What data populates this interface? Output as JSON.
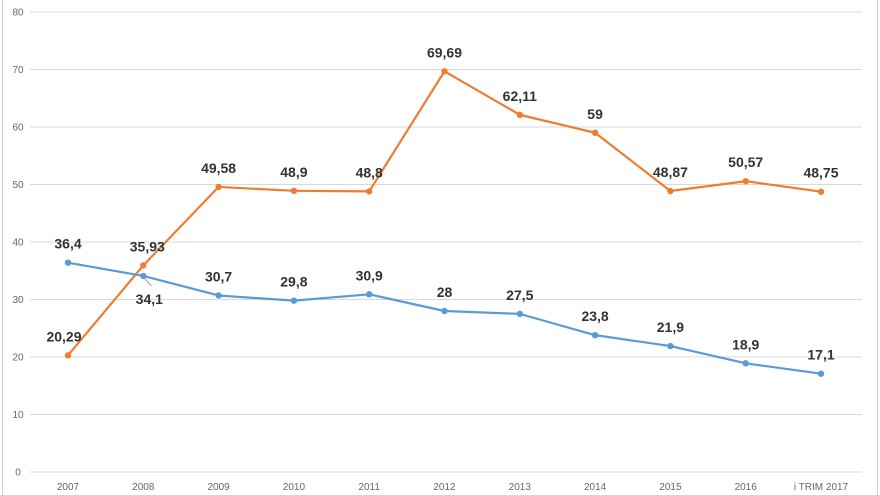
{
  "chart_data": {
    "type": "line",
    "title": "",
    "xlabel": "",
    "ylabel": "",
    "ylim": [
      0,
      80
    ],
    "yticks": [
      "0",
      "10",
      "20",
      "30",
      "40",
      "50",
      "60",
      "70",
      "80"
    ],
    "categories": [
      "2007",
      "2008",
      "2009",
      "2010",
      "2011",
      "2012",
      "2013",
      "2014",
      "2015",
      "2016",
      "i TRIM 2017"
    ],
    "grid": true,
    "legend": "none",
    "series": [
      {
        "name": "orange",
        "color": "#ed7d31",
        "values": [
          20.29,
          35.93,
          49.58,
          48.9,
          48.8,
          69.69,
          62.11,
          59,
          48.87,
          50.57,
          48.75
        ],
        "labels": [
          "20,29",
          "35,93",
          "49,58",
          "48,9",
          "48,8",
          "69,69",
          "62,11",
          "59",
          "48,87",
          "50,57",
          "48,75"
        ]
      },
      {
        "name": "blue",
        "color": "#5b9bd5",
        "values": [
          36.4,
          34.1,
          30.7,
          29.8,
          30.9,
          28,
          27.5,
          23.8,
          21.9,
          18.9,
          17.1
        ],
        "labels": [
          "36,4",
          "34,1",
          "30,7",
          "29,8",
          "30,9",
          "28",
          "27,5",
          "23,8",
          "21,9",
          "18,9",
          "17,1"
        ]
      }
    ]
  }
}
